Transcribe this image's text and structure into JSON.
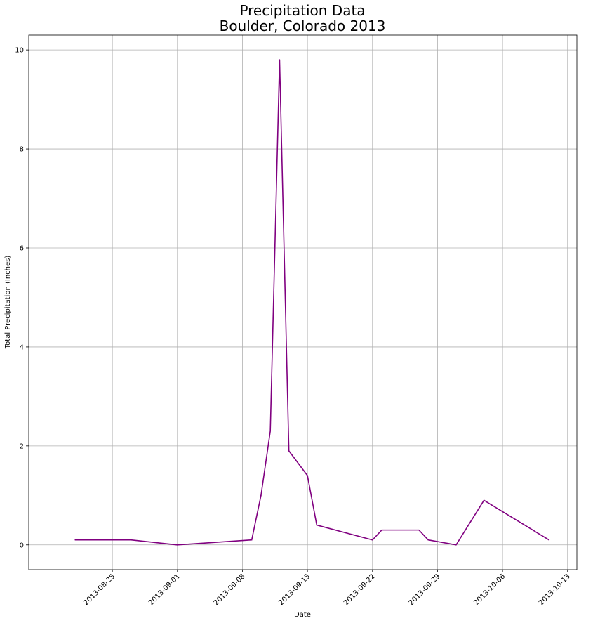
{
  "chart_data": {
    "type": "line",
    "title_line1": "Precipitation Data",
    "title_line2": "Boulder, Colorado 2013",
    "xlabel": "Date",
    "ylabel": "Total Precipitation (Inches)",
    "xlim": [
      "2013-08-16",
      "2013-10-14"
    ],
    "ylim": [
      -0.5,
      10.3
    ],
    "x_ticks": [
      "2013-08-25",
      "2013-09-01",
      "2013-09-08",
      "2013-09-15",
      "2013-09-22",
      "2013-09-29",
      "2013-10-06",
      "2013-10-13"
    ],
    "y_ticks": [
      0,
      2,
      4,
      6,
      8,
      10
    ],
    "grid": true,
    "series": [
      {
        "color": "#800080",
        "x": [
          "2013-08-21",
          "2013-08-27",
          "2013-09-01",
          "2013-09-09",
          "2013-09-10",
          "2013-09-11",
          "2013-09-12",
          "2013-09-13",
          "2013-09-15",
          "2013-09-16",
          "2013-09-22",
          "2013-09-23",
          "2013-09-27",
          "2013-09-28",
          "2013-10-01",
          "2013-10-04",
          "2013-10-11"
        ],
        "y": [
          0.1,
          0.1,
          0.0,
          0.1,
          1.0,
          2.3,
          9.8,
          1.9,
          1.4,
          0.4,
          0.1,
          0.3,
          0.3,
          0.1,
          0.0,
          0.9,
          0.1
        ]
      }
    ]
  }
}
